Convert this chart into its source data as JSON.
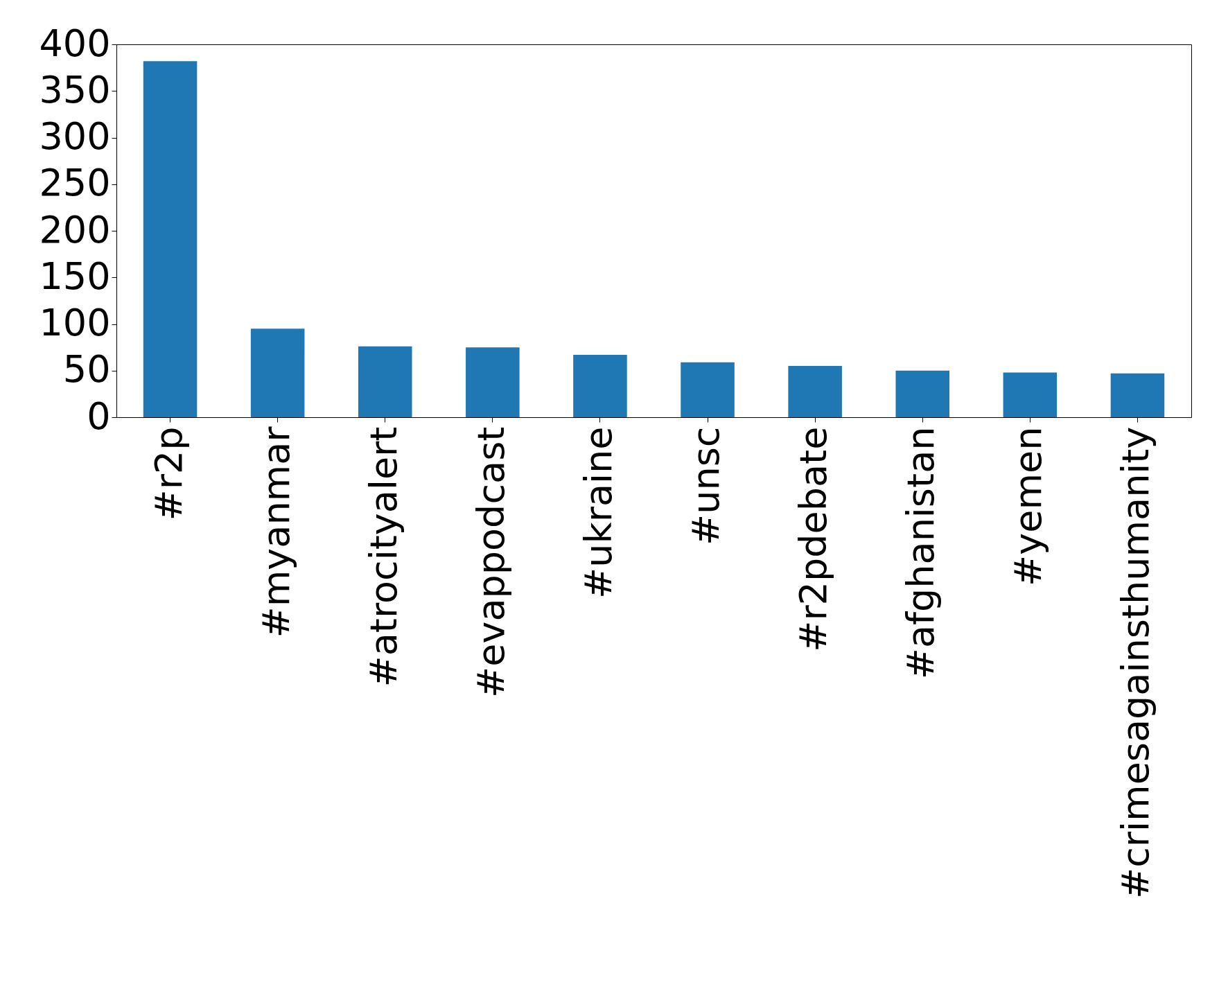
{
  "chart_data": {
    "type": "bar",
    "categories": [
      "#r2p",
      "#myanmar",
      "#atrocityalert",
      "#evappodcast",
      "#ukraine",
      "#unsc",
      "#r2pdebate",
      "#afghanistan",
      "#yemen",
      "#crimesagainsthumanity"
    ],
    "values": [
      382,
      95,
      76,
      75,
      67,
      59,
      55,
      50,
      48,
      47
    ],
    "color": "#1f77b4",
    "ylim": [
      0,
      400
    ],
    "yticks": [
      0,
      50,
      100,
      150,
      200,
      250,
      300,
      350,
      400
    ],
    "grid": false
  }
}
